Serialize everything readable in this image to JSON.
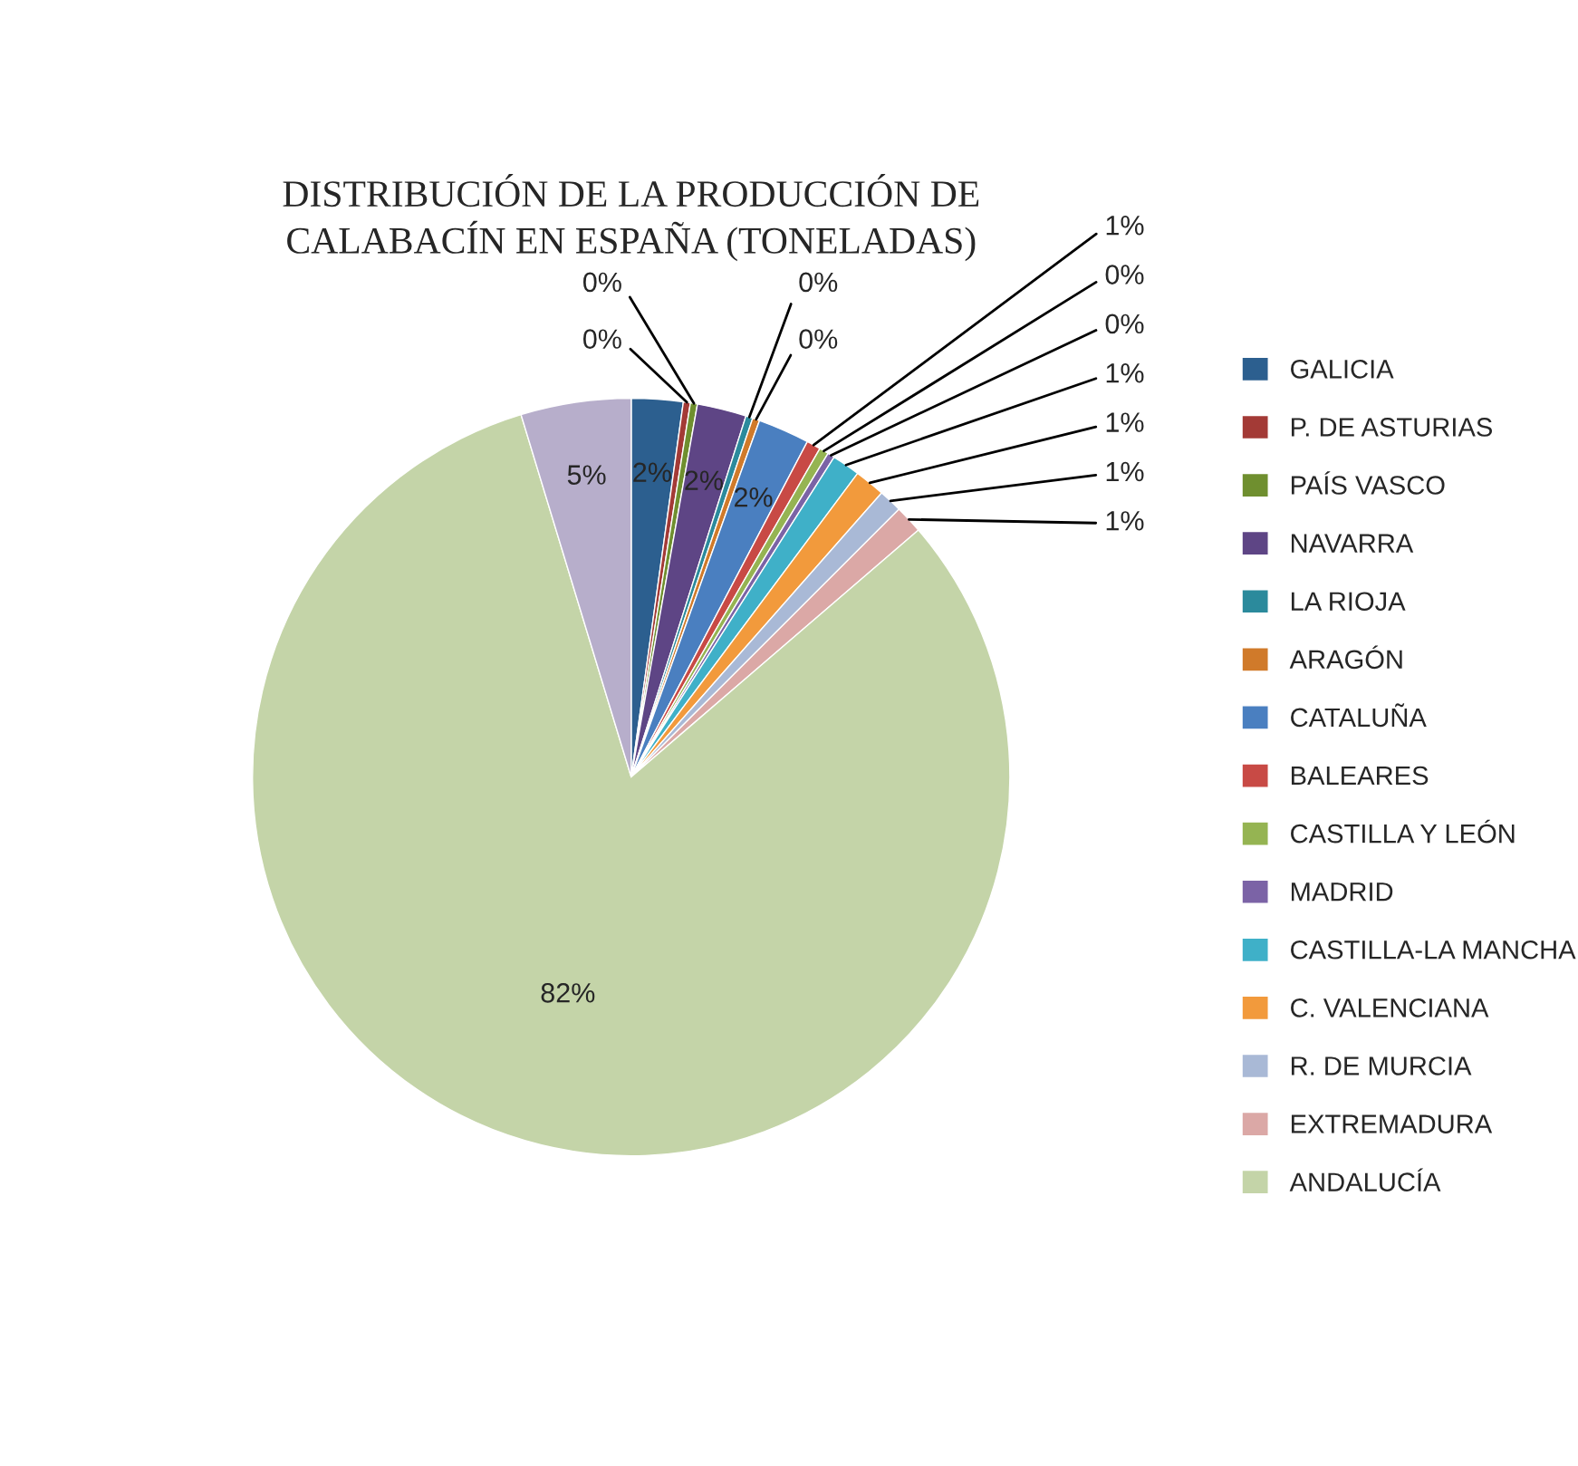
{
  "chart_data": {
    "type": "pie",
    "title": "DISTRIBUCIÓN DE LA PRODUCCIÓN DE\nCALABACÍN EN ESPAÑA (TONELADAS)",
    "categories": [
      "GALICIA",
      "P. DE ASTURIAS",
      "PAÍS VASCO",
      "NAVARRA",
      "LA RIOJA",
      "ARAGÓN",
      "CATALUÑA",
      "BALEARES",
      "CASTILLA Y LEÓN",
      "MADRID",
      "CASTILLA-LA MANCHA",
      "C. VALENCIANA",
      "R. DE MURCIA",
      "EXTREMADURA",
      "ANDALUCÍA",
      null
    ],
    "values": [
      2.2,
      0.3,
      0.3,
      2.1,
      0.3,
      0.3,
      2.2,
      0.6,
      0.4,
      0.3,
      1.2,
      1.3,
      1.0,
      1.2,
      81.6,
      4.7
    ],
    "value_labels": [
      "2%",
      "0%",
      "0%",
      "2%",
      "0%",
      "0%",
      "2%",
      "1%",
      "0%",
      "0%",
      "1%",
      "1%",
      "1%",
      "1%",
      "82%",
      "5%"
    ],
    "colors": [
      "#2c5f8f",
      "#a33a36",
      "#6f8f2f",
      "#5e4585",
      "#2b8a9c",
      "#d07a2a",
      "#4a7fc0",
      "#c84a45",
      "#95b452",
      "#7b63a6",
      "#3fb0c8",
      "#f29a3c",
      "#a9b9d6",
      "#dba8a6",
      "#c4d4a8",
      "#b7aecb"
    ],
    "legend": "right"
  }
}
